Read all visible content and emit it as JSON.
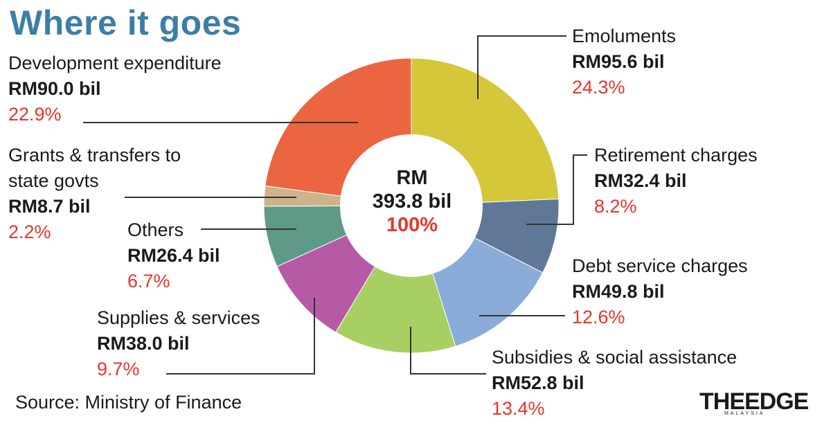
{
  "title": "Where it goes",
  "source": "Source: Ministry of Finance",
  "logo": {
    "main": "THEEDGE",
    "sub": "MALAYSIA"
  },
  "center": {
    "line1": "RM",
    "line2": "393.8 bil",
    "line3": "100%"
  },
  "colors": {
    "accent_red": "#e8352b",
    "title_blue": "#3d7ea6"
  },
  "chart_data": {
    "type": "pie",
    "donut": true,
    "slices": [
      {
        "key": "emoluments",
        "name": "Emoluments",
        "value": 95.6,
        "amount": "RM95.6 bil",
        "percent": 24.3,
        "percent_label": "24.3%",
        "color": "#d5c73a"
      },
      {
        "key": "retirement",
        "name": "Retirement charges",
        "value": 32.4,
        "amount": "RM32.4 bil",
        "percent": 8.2,
        "percent_label": "8.2%",
        "color": "#5f7898"
      },
      {
        "key": "debt",
        "name": "Debt service charges",
        "value": 49.8,
        "amount": "RM49.8 bil",
        "percent": 12.6,
        "percent_label": "12.6%",
        "color": "#8aacd9"
      },
      {
        "key": "subsidies",
        "name": "Subsidies & social assistance",
        "value": 52.8,
        "amount": "RM52.8 bil",
        "percent": 13.4,
        "percent_label": "13.4%",
        "color": "#a8cf62"
      },
      {
        "key": "supplies",
        "name": "Supplies & services",
        "value": 38.0,
        "amount": "RM38.0 bil",
        "percent": 9.7,
        "percent_label": "9.7%",
        "color": "#b65aa6"
      },
      {
        "key": "others",
        "name": "Others",
        "value": 26.4,
        "amount": "RM26.4 bil",
        "percent": 6.7,
        "percent_label": "6.7%",
        "color": "#5f9a88"
      },
      {
        "key": "grants",
        "name_line1": "Grants & transfers to",
        "name_line2": "state govts",
        "value": 8.7,
        "amount": "RM8.7 bil",
        "percent": 2.2,
        "percent_label": "2.2%",
        "color": "#cdb38b"
      },
      {
        "key": "development",
        "name": "Development expenditure",
        "value": 90.0,
        "amount": "RM90.0 bil",
        "percent": 22.9,
        "percent_label": "22.9%",
        "color": "#eb6541"
      }
    ]
  }
}
